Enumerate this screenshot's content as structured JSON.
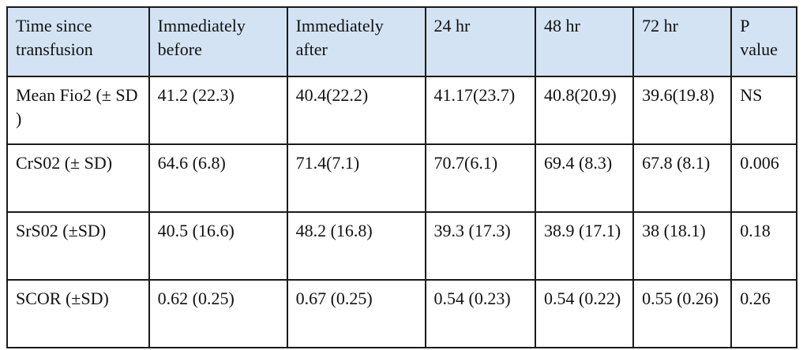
{
  "table": {
    "headers": [
      "Time since transfusion",
      "Immediately before",
      "Immediately after",
      "24 hr",
      "48 hr",
      "72 hr",
      "P value"
    ],
    "rows": [
      [
        "Mean Fio2 (± SD )",
        "41.2 (22.3)",
        "40.4(22.2)",
        "41.17(23.7)",
        "40.8(20.9)",
        "39.6(19.8)",
        " NS"
      ],
      [
        "CrS02 (± SD)",
        "64.6 (6.8)",
        "71.4(7.1)",
        "70.7(6.1)",
        "69.4 (8.3)",
        "67.8 (8.1)",
        "0.006"
      ],
      [
        "SrS02 (±SD)",
        "40.5 (16.6)",
        "48.2 (16.8)",
        "39.3 (17.3)",
        "38.9 (17.1)",
        "38 (18.1)",
        "0.18"
      ],
      [
        "SCOR (±SD)",
        "0.62 (0.25)",
        "0.67 (0.25)",
        "0.54 (0.23)",
        "0.54 (0.22)",
        "0.55 (0.26)",
        "0.26"
      ]
    ]
  },
  "colors": {
    "header_bg": "#d3e3f3",
    "border": "#1a1a1a",
    "text": "#111111"
  }
}
